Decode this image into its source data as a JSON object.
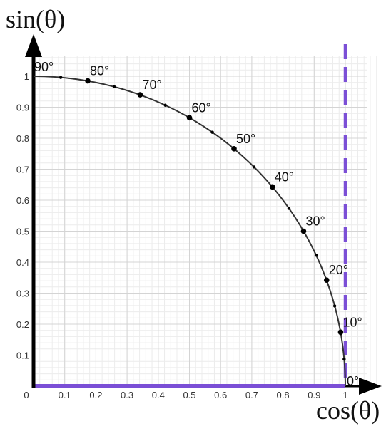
{
  "chart_data": {
    "type": "line",
    "title": "",
    "xlabel": "cos(θ)",
    "ylabel": "sin(θ)",
    "xlim": [
      0,
      1
    ],
    "ylim": [
      0,
      1
    ],
    "xticks": [
      "0",
      "0.1",
      "0.2",
      "0.3",
      "0.4",
      "0.5",
      "0.6",
      "0.7",
      "0.8",
      "0.9",
      "1"
    ],
    "yticks": [
      "0.1",
      "0.2",
      "0.3",
      "0.4",
      "0.5",
      "0.6",
      "0.7",
      "0.8",
      "0.9",
      "1"
    ],
    "grid": true,
    "curve": "unit circle arc from 0° to 90°",
    "points": [
      {
        "label": "0°",
        "angle": 0,
        "x": 1.0,
        "y": 0.0
      },
      {
        "label": "10°",
        "angle": 10,
        "x": 0.985,
        "y": 0.174
      },
      {
        "label": "20°",
        "angle": 20,
        "x": 0.94,
        "y": 0.342
      },
      {
        "label": "30°",
        "angle": 30,
        "x": 0.866,
        "y": 0.5
      },
      {
        "label": "40°",
        "angle": 40,
        "x": 0.766,
        "y": 0.643
      },
      {
        "label": "50°",
        "angle": 50,
        "x": 0.643,
        "y": 0.766
      },
      {
        "label": "60°",
        "angle": 60,
        "x": 0.5,
        "y": 0.866
      },
      {
        "label": "70°",
        "angle": 70,
        "x": 0.342,
        "y": 0.94
      },
      {
        "label": "80°",
        "angle": 80,
        "x": 0.174,
        "y": 0.985
      },
      {
        "label": "90°",
        "angle": 90,
        "x": 0.0,
        "y": 1.0
      }
    ],
    "minor_points_angles": [
      5,
      15,
      25,
      35,
      45,
      55,
      65,
      75,
      85
    ],
    "reference_lines": [
      {
        "orientation": "vertical",
        "value": 1,
        "style": "dashed",
        "color": "#7b4fd6"
      },
      {
        "orientation": "horizontal",
        "value": 0,
        "style": "solid",
        "color": "#7b4fd6"
      }
    ],
    "colors": {
      "curve": "#333333",
      "points": "#000000",
      "reference": "#7b4fd6",
      "axes": "#000000",
      "grid_major": "#d4d4d4",
      "grid_minor": "#ececec"
    }
  }
}
